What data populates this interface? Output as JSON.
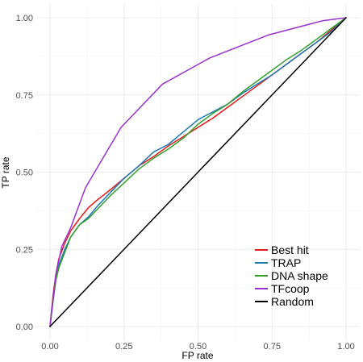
{
  "chart_data": {
    "type": "line",
    "title": "",
    "xlabel": "FP rate",
    "ylabel": "TP rate",
    "xlim": [
      0,
      1
    ],
    "ylim": [
      0,
      1
    ],
    "x_ticks": [
      "0.00",
      "0.25",
      "0.50",
      "0.75",
      "1.00"
    ],
    "y_ticks": [
      "0.00",
      "0.25",
      "0.50",
      "0.75",
      "1.00"
    ],
    "grid": true,
    "legend_position": "bottom-right",
    "series": [
      {
        "name": "Best hit",
        "color": "#e41a1c",
        "x": [
          0,
          0.01,
          0.02,
          0.03,
          0.05,
          0.07,
          0.1,
          0.13,
          0.16,
          0.2,
          0.25,
          0.3,
          0.35,
          0.4,
          0.45,
          0.5,
          0.55,
          0.6,
          0.65,
          0.7,
          0.75,
          0.8,
          0.85,
          0.9,
          0.95,
          1.0
        ],
        "y": [
          0,
          0.1,
          0.17,
          0.22,
          0.27,
          0.31,
          0.35,
          0.385,
          0.41,
          0.44,
          0.48,
          0.52,
          0.55,
          0.585,
          0.615,
          0.645,
          0.675,
          0.71,
          0.745,
          0.78,
          0.815,
          0.85,
          0.885,
          0.92,
          0.96,
          1.0
        ]
      },
      {
        "name": "TRAP",
        "color": "#1f78b4",
        "x": [
          0,
          0.01,
          0.02,
          0.03,
          0.05,
          0.07,
          0.1,
          0.13,
          0.16,
          0.2,
          0.25,
          0.3,
          0.35,
          0.4,
          0.45,
          0.5,
          0.55,
          0.6,
          0.65,
          0.7,
          0.75,
          0.8,
          0.85,
          0.9,
          0.95,
          1.0
        ],
        "y": [
          0,
          0.08,
          0.15,
          0.2,
          0.25,
          0.29,
          0.33,
          0.355,
          0.39,
          0.43,
          0.48,
          0.52,
          0.565,
          0.59,
          0.63,
          0.67,
          0.695,
          0.72,
          0.755,
          0.785,
          0.815,
          0.85,
          0.885,
          0.92,
          0.955,
          1.0
        ]
      },
      {
        "name": "DNA shape",
        "color": "#33a02c",
        "x": [
          0,
          0.01,
          0.02,
          0.03,
          0.05,
          0.07,
          0.1,
          0.13,
          0.16,
          0.2,
          0.25,
          0.3,
          0.35,
          0.4,
          0.45,
          0.5,
          0.55,
          0.6,
          0.65,
          0.7,
          0.75,
          0.8,
          0.85,
          0.9,
          0.95,
          1.0
        ],
        "y": [
          0,
          0.09,
          0.15,
          0.19,
          0.24,
          0.29,
          0.33,
          0.35,
          0.38,
          0.42,
          0.465,
          0.51,
          0.545,
          0.575,
          0.61,
          0.655,
          0.69,
          0.72,
          0.76,
          0.795,
          0.83,
          0.865,
          0.895,
          0.93,
          0.965,
          1.0
        ]
      },
      {
        "name": "TFcoop",
        "color": "#9a32cd",
        "x": [
          0,
          0.02,
          0.04,
          0.07,
          0.12,
          0.24,
          0.38,
          0.54,
          0.74,
          0.92,
          1.0
        ],
        "y": [
          0,
          0.17,
          0.26,
          0.32,
          0.45,
          0.645,
          0.785,
          0.87,
          0.945,
          0.99,
          1.0
        ]
      },
      {
        "name": "Random",
        "color": "#000000",
        "x": [
          0,
          1
        ],
        "y": [
          0,
          1
        ]
      }
    ]
  }
}
